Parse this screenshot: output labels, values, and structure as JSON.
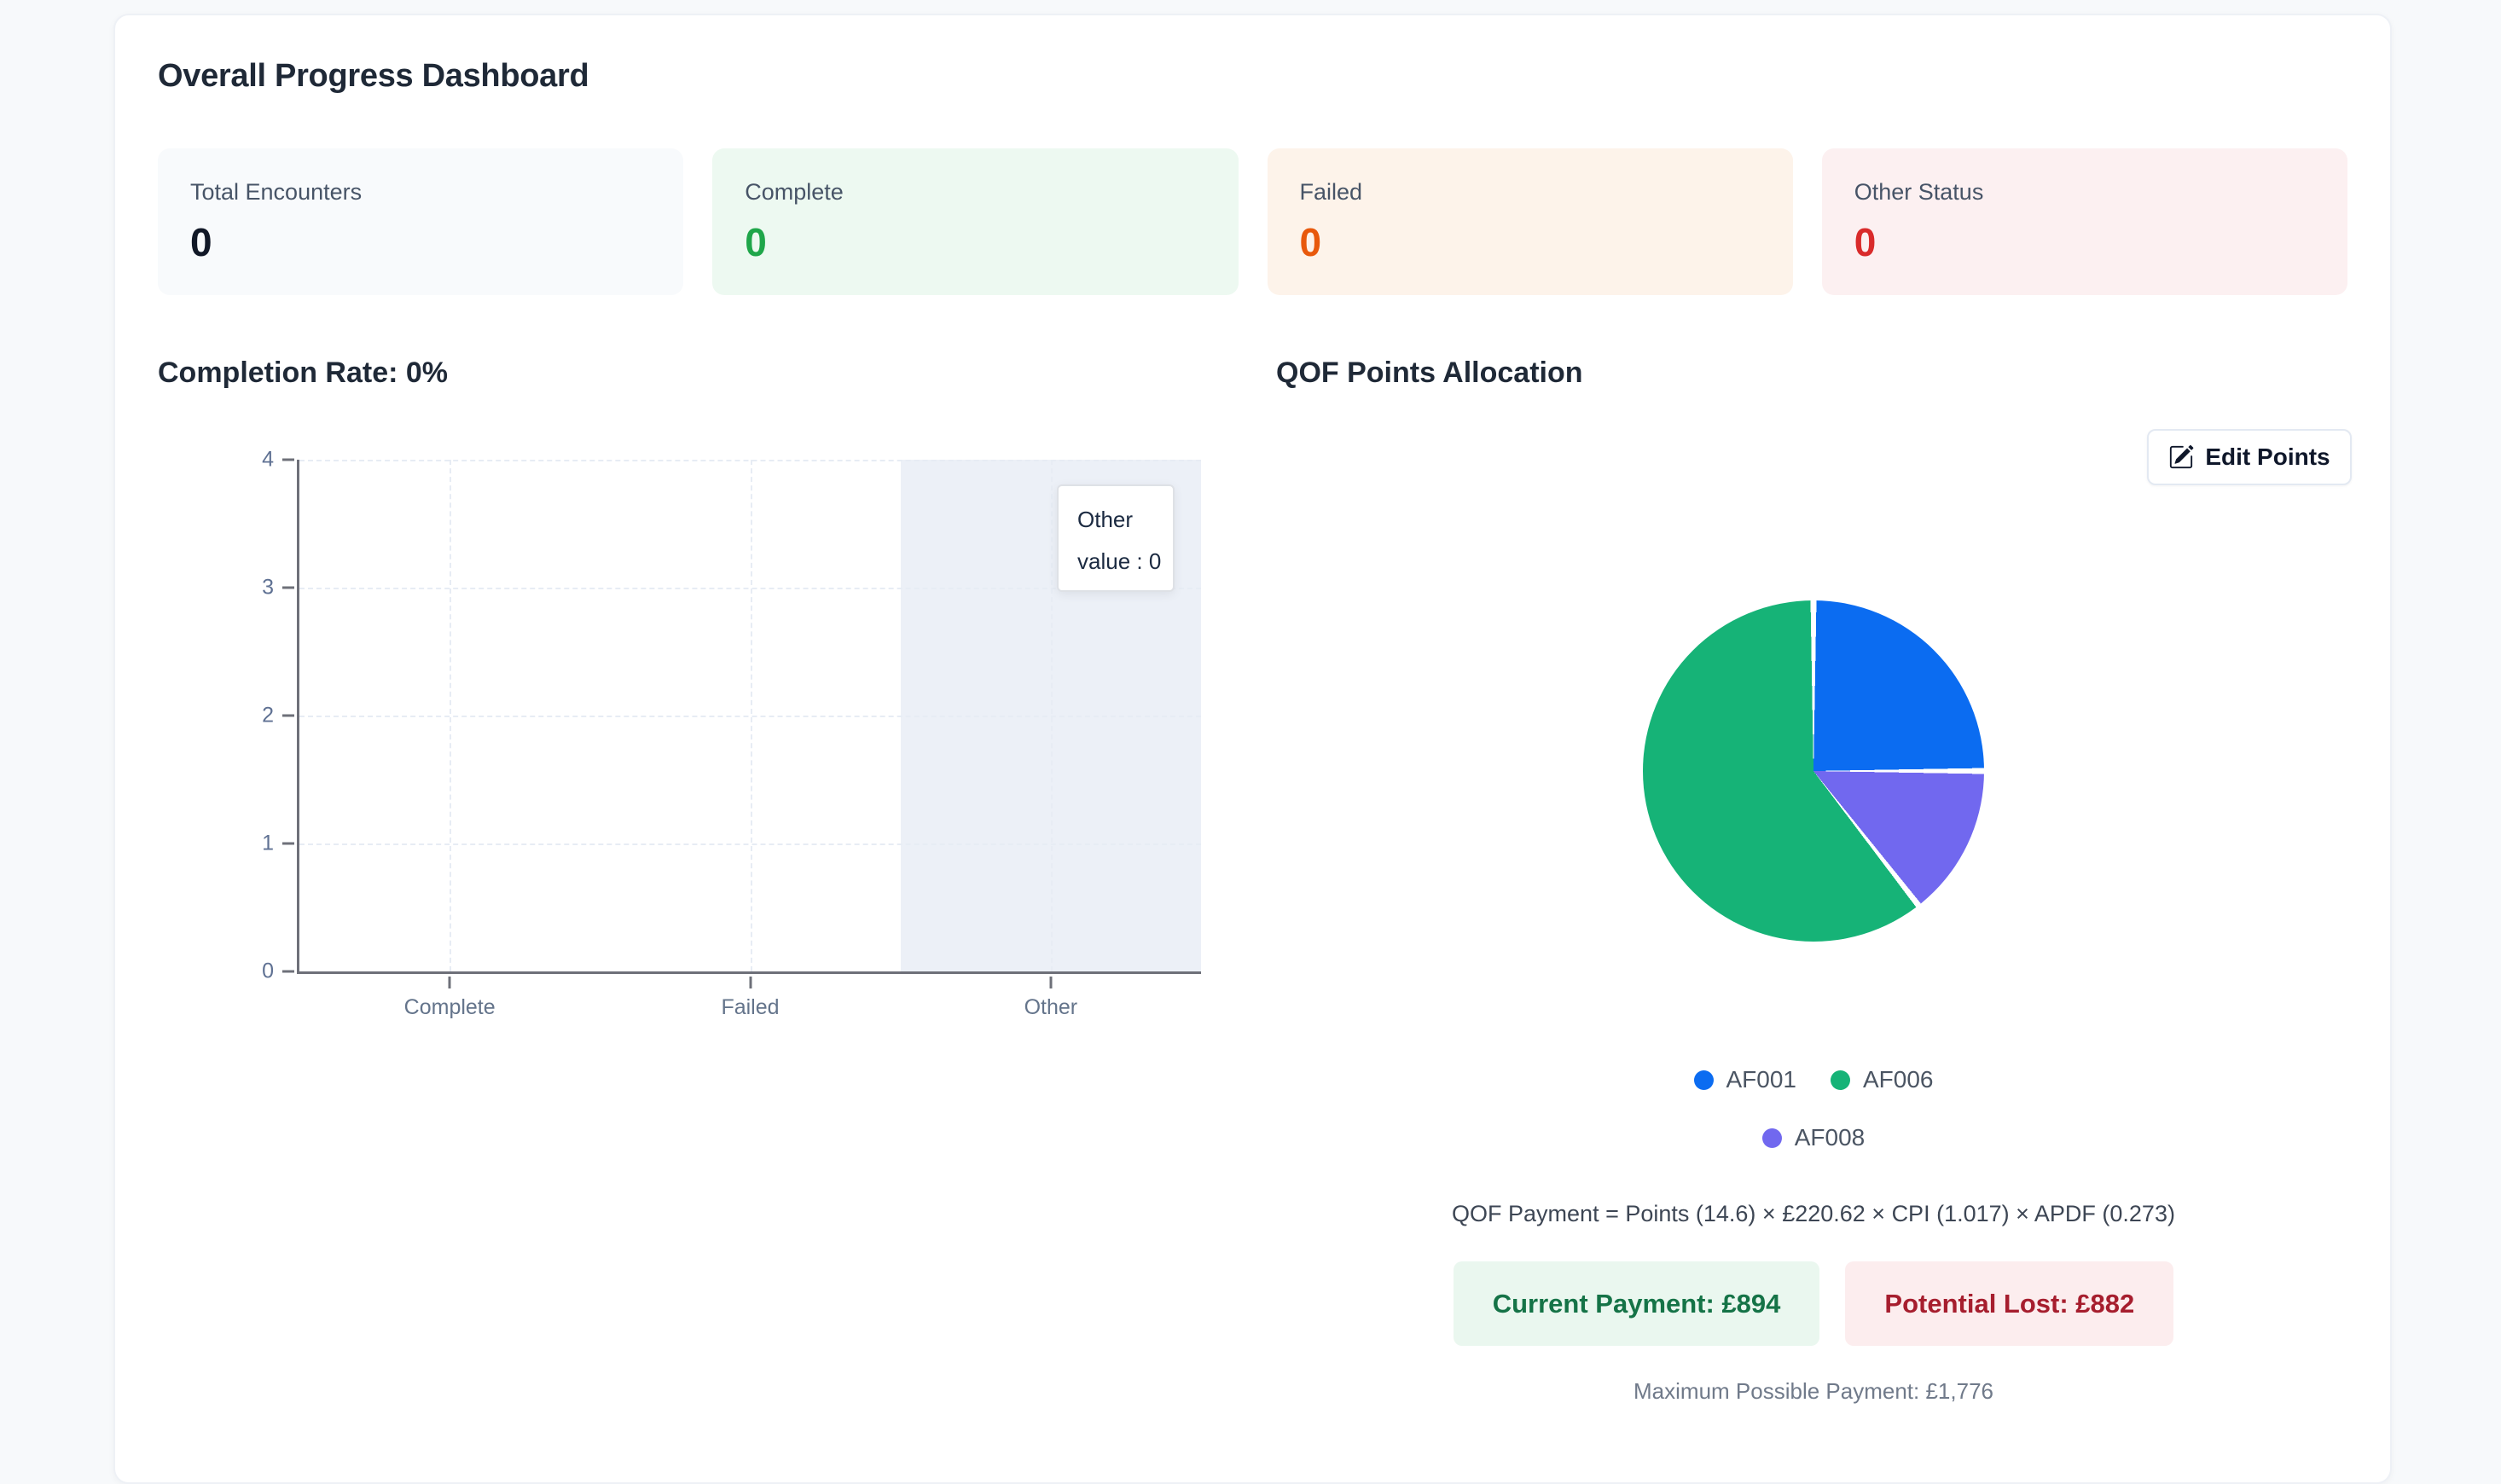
{
  "page": {
    "title": "Overall Progress Dashboard"
  },
  "stats": [
    {
      "label": "Total Encounters",
      "value": "0",
      "bg": "#F8FAFC",
      "value_color": "#111827"
    },
    {
      "label": "Complete",
      "value": "0",
      "bg": "#EDF9F1",
      "value_color": "#1FA64A"
    },
    {
      "label": "Failed",
      "value": "0",
      "bg": "#FDF3EA",
      "value_color": "#E8590C"
    },
    {
      "label": "Other Status",
      "value": "0",
      "bg": "#FCF0F1",
      "value_color": "#D92B2B"
    }
  ],
  "completion": {
    "heading": "Completion Rate: 0%"
  },
  "qof": {
    "heading": "QOF Points Allocation",
    "edit_button_label": "Edit Points",
    "edit_icon": "pencil-square-icon",
    "formula": "QOF Payment = Points (14.6) × £220.62 × CPI (1.017) × APDF (0.273)",
    "current_payment": "Current Payment: £894",
    "potential_lost": "Potential Lost: £882",
    "max_payment": "Maximum Possible Payment: £1,776"
  },
  "chart_data": [
    {
      "type": "bar",
      "title": "Completion Rate: 0%",
      "categories": [
        "Complete",
        "Failed",
        "Other"
      ],
      "values": [
        0,
        0,
        0
      ],
      "xlabel": "",
      "ylabel": "",
      "ylim": [
        0,
        4
      ],
      "yticks": [
        0,
        1,
        2,
        3,
        4
      ],
      "grid": true,
      "highlight_category": "Other",
      "highlight_band_color": "#ECF0F7",
      "axis_color": "#6E7079",
      "tooltip": {
        "title": "Other",
        "line": "value : 0"
      }
    },
    {
      "type": "pie",
      "title": "QOF Points Allocation",
      "slices": [
        {
          "label": "AF001",
          "percent": 25.0,
          "color": "#0B6CF1"
        },
        {
          "label": "AF006",
          "percent": 60.6,
          "color": "#16B377"
        },
        {
          "label": "AF008",
          "percent": 14.4,
          "color": "#7168EF"
        }
      ],
      "segments": [
        {
          "label": "AF001",
          "from": 0,
          "to": 90,
          "color": "#0B6CF1"
        },
        {
          "label": "AF008",
          "from": 90,
          "to": 142,
          "color": "#7168EF"
        },
        {
          "label": "AF006",
          "from": 142,
          "to": 360,
          "color": "#16B377"
        }
      ],
      "legend": [
        {
          "label": "AF001",
          "color": "#0B6CF1"
        },
        {
          "label": "AF006",
          "color": "#16B377"
        },
        {
          "label": "AF008",
          "color": "#7168EF"
        }
      ],
      "legend_position": "bottom"
    }
  ]
}
